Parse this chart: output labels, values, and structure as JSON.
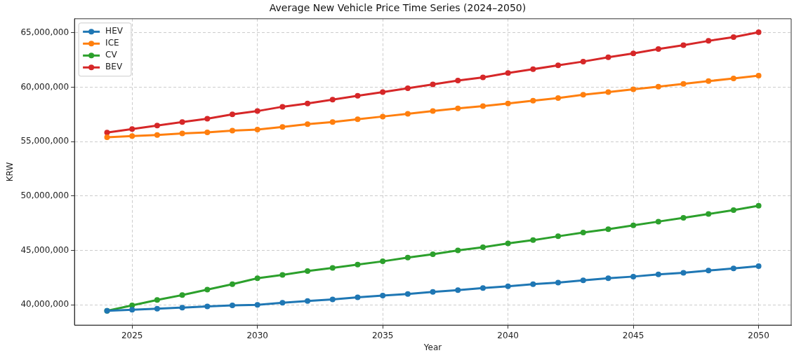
{
  "chart_data": {
    "type": "line",
    "title": "Average New Vehicle Price Time Series (2024–2050)",
    "xlabel": "Year",
    "ylabel": "KRW",
    "x": [
      2024,
      2025,
      2026,
      2027,
      2028,
      2029,
      2030,
      2031,
      2032,
      2033,
      2034,
      2035,
      2036,
      2037,
      2038,
      2039,
      2040,
      2041,
      2042,
      2043,
      2044,
      2045,
      2046,
      2047,
      2048,
      2049,
      2050
    ],
    "series": [
      {
        "name": "HEV",
        "color": "#1f77b4",
        "values": [
          39450000,
          39550000,
          39650000,
          39750000,
          39850000,
          39950000,
          40000000,
          40200000,
          40350000,
          40500000,
          40700000,
          40850000,
          41000000,
          41200000,
          41350000,
          41550000,
          41700000,
          41900000,
          42050000,
          42250000,
          42450000,
          42600000,
          42800000,
          42950000,
          43150000,
          43350000,
          43550000
        ]
      },
      {
        "name": "ICE",
        "color": "#ff7f0e",
        "values": [
          55400000,
          55500000,
          55600000,
          55750000,
          55850000,
          56000000,
          56100000,
          56350000,
          56600000,
          56800000,
          57050000,
          57300000,
          57550000,
          57800000,
          58050000,
          58250000,
          58500000,
          58750000,
          59000000,
          59300000,
          59550000,
          59800000,
          60050000,
          60300000,
          60550000,
          60800000,
          61050000
        ]
      },
      {
        "name": "CV",
        "color": "#2ca02c",
        "values": [
          39450000,
          39950000,
          40450000,
          40900000,
          41400000,
          41900000,
          42450000,
          42750000,
          43100000,
          43400000,
          43700000,
          44000000,
          44350000,
          44650000,
          45000000,
          45300000,
          45650000,
          45950000,
          46300000,
          46650000,
          46950000,
          47300000,
          47650000,
          48000000,
          48350000,
          48700000,
          49100000
        ]
      },
      {
        "name": "BEV",
        "color": "#d62728",
        "values": [
          55830000,
          56150000,
          56470000,
          56800000,
          57100000,
          57500000,
          57800000,
          58200000,
          58500000,
          58850000,
          59200000,
          59550000,
          59900000,
          60250000,
          60600000,
          60900000,
          61300000,
          61650000,
          62000000,
          62350000,
          62750000,
          63100000,
          63500000,
          63850000,
          64250000,
          64600000,
          65050000
        ]
      }
    ],
    "xlim": [
      2022.7,
      2051.3
    ],
    "xticks": [
      2025,
      2030,
      2035,
      2040,
      2045,
      2050
    ],
    "ylim": [
      38140000,
      66280000
    ],
    "yticks": [
      {
        "value": 40000000,
        "label": "40,000,000"
      },
      {
        "value": 45000000,
        "label": "45,000,000"
      },
      {
        "value": 50000000,
        "label": "50,000,000"
      },
      {
        "value": 55000000,
        "label": "55,000,000"
      },
      {
        "value": 60000000,
        "label": "60,000,000"
      },
      {
        "value": 65000000,
        "label": "65,000,000"
      }
    ],
    "grid": true,
    "legend": "top left",
    "marker": "circle",
    "line_style": "solid"
  }
}
